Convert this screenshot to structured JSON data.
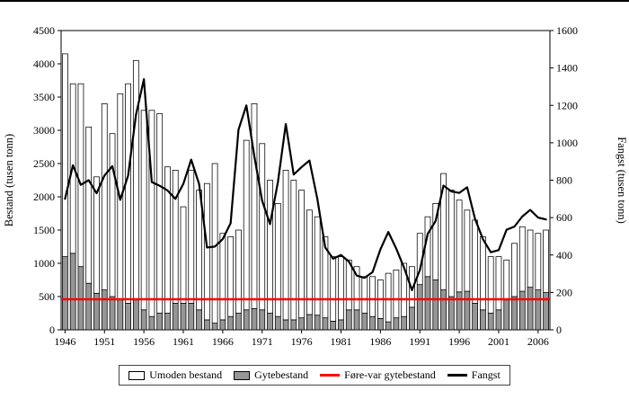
{
  "chart_data": {
    "type": "bar",
    "title": "",
    "grid": false,
    "legend_position": "bottom",
    "left_axis": {
      "label": "Bestand (tusen tonn)",
      "min": 0,
      "max": 4500,
      "step": 500
    },
    "right_axis": {
      "label": "Fangst (tusen tonn)",
      "min": 0,
      "max": 1600,
      "step": 200
    },
    "x_tick_labels": [
      "1946",
      "1951",
      "1956",
      "1961",
      "1966",
      "1971",
      "1976",
      "1981",
      "1986",
      "1991",
      "1996",
      "2001",
      "2006"
    ],
    "x": [
      1946,
      1947,
      1948,
      1949,
      1950,
      1951,
      1952,
      1953,
      1954,
      1955,
      1956,
      1957,
      1958,
      1959,
      1960,
      1961,
      1962,
      1963,
      1964,
      1965,
      1966,
      1967,
      1968,
      1969,
      1970,
      1971,
      1972,
      1973,
      1974,
      1975,
      1976,
      1977,
      1978,
      1979,
      1980,
      1981,
      1982,
      1983,
      1984,
      1985,
      1986,
      1987,
      1988,
      1989,
      1990,
      1991,
      1992,
      1993,
      1994,
      1995,
      1996,
      1997,
      1998,
      1999,
      2000,
      2001,
      2002,
      2003,
      2004,
      2005,
      2006,
      2007
    ],
    "series": [
      {
        "name": "Umoden bestand",
        "type": "bar",
        "stack": "bestand",
        "axis": "left",
        "fill": "#ffffff",
        "stroke": "#000000",
        "values": [
          3050,
          2550,
          2750,
          2350,
          1750,
          2800,
          2450,
          3100,
          3300,
          3600,
          3000,
          3100,
          3000,
          2200,
          2000,
          1450,
          2000,
          1800,
          2050,
          2400,
          1300,
          1200,
          1250,
          2550,
          3080,
          2500,
          2000,
          1700,
          2250,
          2100,
          1920,
          1570,
          1480,
          1220,
          970,
          950,
          750,
          650,
          550,
          600,
          580,
          730,
          720,
          800,
          610,
          770,
          900,
          1150,
          1750,
          1600,
          1380,
          1220,
          1250,
          1100,
          850,
          800,
          600,
          800,
          970,
          860,
          850,
          940
        ]
      },
      {
        "name": "Gytebestand",
        "type": "bar",
        "stack": "bestand",
        "axis": "left",
        "fill": "#969696",
        "stroke": "#000000",
        "values": [
          1100,
          1150,
          950,
          700,
          550,
          600,
          500,
          450,
          400,
          450,
          300,
          200,
          250,
          250,
          400,
          400,
          400,
          300,
          150,
          100,
          150,
          200,
          250,
          300,
          320,
          300,
          250,
          200,
          150,
          150,
          180,
          230,
          220,
          180,
          130,
          150,
          300,
          300,
          250,
          200,
          170,
          120,
          180,
          200,
          340,
          680,
          800,
          750,
          600,
          500,
          570,
          580,
          400,
          300,
          250,
          300,
          450,
          500,
          580,
          640,
          600,
          560
        ]
      },
      {
        "name": "Føre-var gytebestand",
        "type": "hline",
        "axis": "left",
        "color": "#ff0000",
        "value": 460
      },
      {
        "name": "Fangst",
        "type": "line",
        "axis": "right",
        "color": "#000000",
        "values": [
          700,
          880,
          775,
          800,
          730,
          825,
          875,
          695,
          825,
          1150,
          1340,
          790,
          770,
          745,
          700,
          780,
          910,
          780,
          440,
          445,
          485,
          570,
          1070,
          1200,
          930,
          690,
          565,
          790,
          1100,
          830,
          870,
          905,
          700,
          440,
          380,
          400,
          365,
          290,
          278,
          308,
          430,
          523,
          435,
          332,
          212,
          319,
          513,
          582,
          771,
          740,
          732,
          762,
          593,
          485,
          415,
          426,
          535,
          552,
          606,
          641,
          600,
          590
        ]
      }
    ]
  }
}
